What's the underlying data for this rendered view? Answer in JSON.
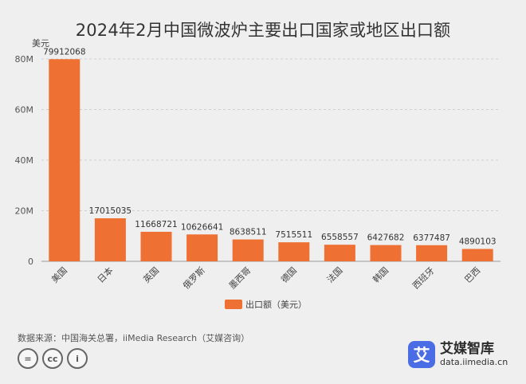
{
  "chart_data": {
    "type": "bar",
    "title": "2024年2月中国微波炉主要出口国家或地区出口额",
    "unit_label": "美元",
    "categories": [
      "美国",
      "日本",
      "英国",
      "俄罗斯",
      "墨西哥",
      "德国",
      "法国",
      "韩国",
      "西班牙",
      "巴西"
    ],
    "series": [
      {
        "name": "出口额（美元）",
        "values": [
          79912068,
          17015035,
          11668721,
          10626641,
          8638511,
          7515511,
          6558557,
          6427682,
          6377487,
          4890103
        ]
      }
    ],
    "data_labels": [
      "79912068",
      "17015035",
      "11668721",
      "10626641",
      "8638511",
      "7515511",
      "6558557",
      "6427682",
      "6377487",
      "4890103"
    ],
    "ylim": [
      0,
      80000000
    ],
    "yticks": [
      0,
      20000000,
      40000000,
      60000000,
      80000000
    ],
    "ytick_labels": [
      "0",
      "20M",
      "40M",
      "60M",
      "80M"
    ],
    "grid": true,
    "legend_position": "bottom-center",
    "bar_color": "#ee7032"
  },
  "footer": {
    "source": "数据来源：中国海关总署，iiMedia Research（艾媒咨询）",
    "cc_icons": [
      "=",
      "cc",
      "i"
    ],
    "brand_logo_char": "艾",
    "brand_name": "艾媒智库",
    "brand_url": "data.iimedia.cn"
  }
}
